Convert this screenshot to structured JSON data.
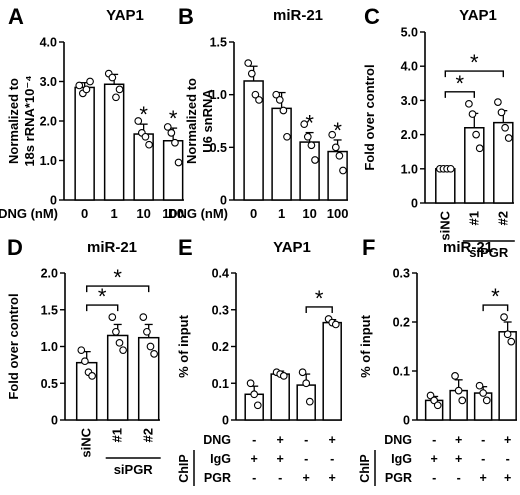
{
  "chart_data": [
    {
      "panel": "A",
      "type": "bar",
      "title": "YAP1",
      "ylabel": "Normalized to 18s rRNA*10⁻⁴",
      "xlabel": "DNG (nM)",
      "categories": [
        "0",
        "1",
        "10",
        "100"
      ],
      "values": [
        2.85,
        2.93,
        1.67,
        1.5
      ],
      "errors": [
        0.12,
        0.25,
        0.25,
        0.32
      ],
      "points": [
        [
          2.9,
          2.7,
          2.8,
          3.0
        ],
        [
          3.2,
          3.1,
          2.6,
          2.8
        ],
        [
          2.0,
          1.7,
          1.6,
          1.4
        ],
        [
          1.85,
          1.7,
          1.45,
          0.95
        ]
      ],
      "ylim": [
        0,
        4
      ],
      "yticks": [
        "0",
        "1.0",
        "2.0",
        "3.0",
        "4.0"
      ],
      "stars": [
        "",
        "",
        "*",
        "*"
      ]
    },
    {
      "panel": "B",
      "type": "bar",
      "title": "miR-21",
      "ylabel": "Normalized to U6 snRNA",
      "xlabel": "DNG (nM)",
      "categories": [
        "0",
        "1",
        "10",
        "100"
      ],
      "values": [
        1.13,
        0.87,
        0.55,
        0.46
      ],
      "errors": [
        0.14,
        0.15,
        0.09,
        0.11
      ],
      "points": [
        [
          1.3,
          1.2,
          1.0,
          0.95
        ],
        [
          1.0,
          0.95,
          0.85,
          0.6
        ],
        [
          0.72,
          0.6,
          0.52,
          0.38
        ],
        [
          0.62,
          0.5,
          0.42,
          0.28
        ]
      ],
      "ylim": [
        0,
        1.5
      ],
      "yticks": [
        "0",
        "0.5",
        "1.0",
        "1.5"
      ],
      "stars": [
        "",
        "",
        "*",
        "*"
      ]
    },
    {
      "panel": "C",
      "type": "bar",
      "title": "YAP1",
      "ylabel": "Fold over control",
      "categories": [
        "siNC",
        "#1",
        "#2"
      ],
      "group_label": "siPGR",
      "values": [
        1.0,
        2.2,
        2.35
      ],
      "errors": [
        0.03,
        0.42,
        0.35
      ],
      "points": [
        [
          1.0,
          1.0,
          1.0,
          1.0
        ],
        [
          2.9,
          2.6,
          2.0,
          1.6
        ],
        [
          2.95,
          2.65,
          2.2,
          1.9
        ]
      ],
      "ylim": [
        0,
        5
      ],
      "yticks": [
        "0",
        "1.0",
        "2.0",
        "3.0",
        "4.0",
        "5.0"
      ],
      "brackets": [
        {
          "from": 0,
          "to": 1,
          "label": "*"
        },
        {
          "from": 0,
          "to": 2,
          "label": "*"
        }
      ]
    },
    {
      "panel": "D",
      "type": "bar",
      "title": "miR-21",
      "ylabel": "Fold over control",
      "categories": [
        "siNC",
        "#1",
        "#2"
      ],
      "group_label": "siPGR",
      "values": [
        0.78,
        1.15,
        1.12
      ],
      "errors": [
        0.15,
        0.15,
        0.18
      ],
      "points": [
        [
          0.95,
          0.8,
          0.65,
          0.6
        ],
        [
          1.4,
          1.2,
          1.05,
          0.95
        ],
        [
          1.4,
          1.2,
          1.0,
          0.9
        ]
      ],
      "ylim": [
        0,
        2
      ],
      "yticks": [
        "0",
        "0.5",
        "1.0",
        "1.5",
        "2.0"
      ],
      "brackets": [
        {
          "from": 0,
          "to": 1,
          "label": "*"
        },
        {
          "from": 0,
          "to": 2,
          "label": "*"
        }
      ]
    },
    {
      "panel": "E",
      "type": "bar",
      "title": "YAP1",
      "ylabel": "% of input",
      "values": [
        0.07,
        0.125,
        0.095,
        0.265
      ],
      "errors": [
        0.022,
        0.008,
        0.03,
        0.008
      ],
      "points": [
        [
          0.1,
          0.07,
          0.04
        ],
        [
          0.13,
          0.125,
          0.12
        ],
        [
          0.13,
          0.1,
          0.05
        ],
        [
          0.275,
          0.265,
          0.26
        ]
      ],
      "ylim": [
        0,
        0.4
      ],
      "yticks": [
        "0",
        "0.1",
        "0.2",
        "0.3",
        "0.4"
      ],
      "brackets": [
        {
          "from": 2,
          "to": 3,
          "label": "*"
        }
      ],
      "matrix": {
        "section_label": "ChIP",
        "rows": [
          {
            "label": "DNG",
            "signs": [
              "-",
              "+",
              "-",
              "+"
            ]
          },
          {
            "label": "IgG",
            "signs": [
              "+",
              "+",
              "-",
              "-"
            ]
          },
          {
            "label": "PGR",
            "signs": [
              "-",
              "-",
              "+",
              "+"
            ]
          }
        ]
      }
    },
    {
      "panel": "F",
      "type": "bar",
      "title": "miR-21",
      "ylabel": "% of input",
      "values": [
        0.04,
        0.06,
        0.055,
        0.18
      ],
      "errors": [
        0.008,
        0.022,
        0.013,
        0.02
      ],
      "points": [
        [
          0.05,
          0.04,
          0.03
        ],
        [
          0.09,
          0.06,
          0.04
        ],
        [
          0.07,
          0.055,
          0.04
        ],
        [
          0.21,
          0.175,
          0.16
        ]
      ],
      "ylim": [
        0,
        0.3
      ],
      "yticks": [
        "0",
        "0.1",
        "0.2",
        "0.3"
      ],
      "brackets": [
        {
          "from": 2,
          "to": 3,
          "label": "*"
        }
      ],
      "matrix": {
        "section_label": "ChIP",
        "rows": [
          {
            "label": "DNG",
            "signs": [
              "-",
              "+",
              "-",
              "+"
            ]
          },
          {
            "label": "IgG",
            "signs": [
              "+",
              "+",
              "-",
              "-"
            ]
          },
          {
            "label": "PGR",
            "signs": [
              "-",
              "-",
              "+",
              "+"
            ]
          }
        ]
      }
    }
  ]
}
